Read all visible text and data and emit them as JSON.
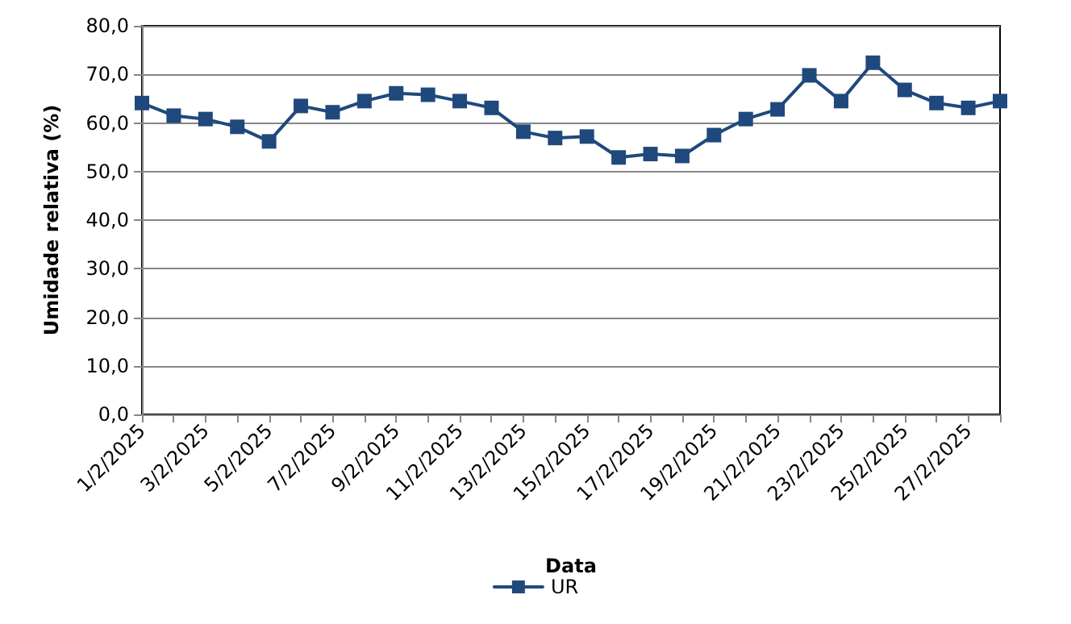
{
  "chart_data": {
    "type": "line",
    "xlabel": "Data",
    "ylabel": "Umidade relativa (%)",
    "categories": [
      "1/2/2025",
      null,
      "3/2/2025",
      null,
      "5/2/2025",
      null,
      "7/2/2025",
      null,
      "9/2/2025",
      null,
      "11/2/2025",
      null,
      "13/2/2025",
      null,
      "15/2/2025",
      null,
      "17/2/2025",
      null,
      "19/2/2025",
      null,
      "21/2/2025",
      null,
      "23/2/2025",
      null,
      "25/2/2025",
      null,
      "27/2/2025",
      null
    ],
    "series": [
      {
        "name": "UR",
        "color": "#1f497d",
        "values": [
          64.1,
          61.5,
          60.8,
          59.2,
          56.2,
          63.5,
          62.2,
          64.5,
          66.1,
          65.8,
          64.5,
          63.1,
          58.2,
          56.9,
          57.2,
          52.9,
          53.6,
          53.2,
          57.5,
          60.8,
          62.8,
          69.8,
          64.5,
          72.4,
          66.8,
          64.1,
          63.1,
          64.5
        ]
      }
    ],
    "ylim": [
      0,
      80
    ],
    "yticks": [
      {
        "value": 0,
        "label": "0,0"
      },
      {
        "value": 10,
        "label": "10,0"
      },
      {
        "value": 20,
        "label": "20,0"
      },
      {
        "value": 30,
        "label": "30,0"
      },
      {
        "value": 40,
        "label": "40,0"
      },
      {
        "value": 50,
        "label": "50,0"
      },
      {
        "value": 60,
        "label": "60,0"
      },
      {
        "value": 70,
        "label": "70,0"
      },
      {
        "value": 80,
        "label": "80,0"
      }
    ],
    "grid": "y",
    "legend": "bottom",
    "marker": "square",
    "line_style": "solid"
  }
}
